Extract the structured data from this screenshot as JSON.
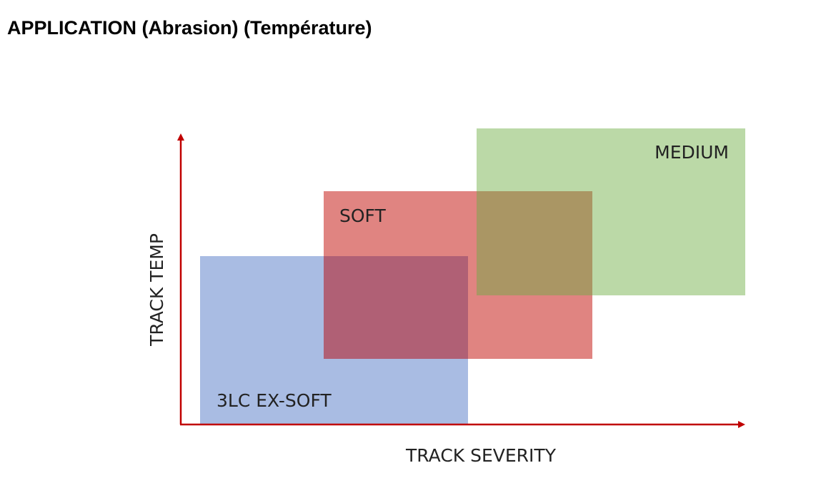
{
  "title": "APPLICATION (Abrasion) (Température)",
  "axes": {
    "y_label": "TRACK TEMP",
    "x_label": "TRACK SEVERITY"
  },
  "regions": [
    {
      "label": "3LC EX-SOFT"
    },
    {
      "label": "SOFT"
    },
    {
      "label": "MEDIUM"
    }
  ]
}
